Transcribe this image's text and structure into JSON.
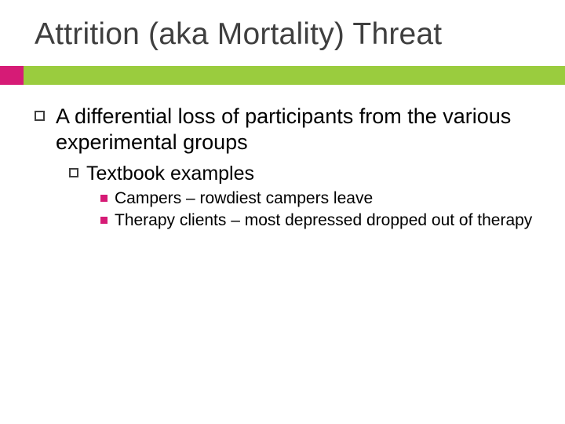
{
  "slide": {
    "title": "Attrition (aka Mortality) Threat",
    "accent_left_color": "#d61b76",
    "accent_right_color": "#9acc3e",
    "title_color": "#3f3f3f",
    "lvl3_bullet_color": "#d61b76",
    "background_color": "#ffffff",
    "body": {
      "lvl1_text": "A differential loss of participants from the various experimental groups",
      "lvl2_text": "Textbook examples",
      "lvl3_items": [
        "Campers – rowdiest campers leave",
        "Therapy clients – most depressed dropped out of therapy"
      ]
    },
    "font": {
      "title_size_pt": 29,
      "lvl1_size_pt": 20,
      "lvl2_size_pt": 19,
      "lvl3_size_pt": 16
    }
  }
}
